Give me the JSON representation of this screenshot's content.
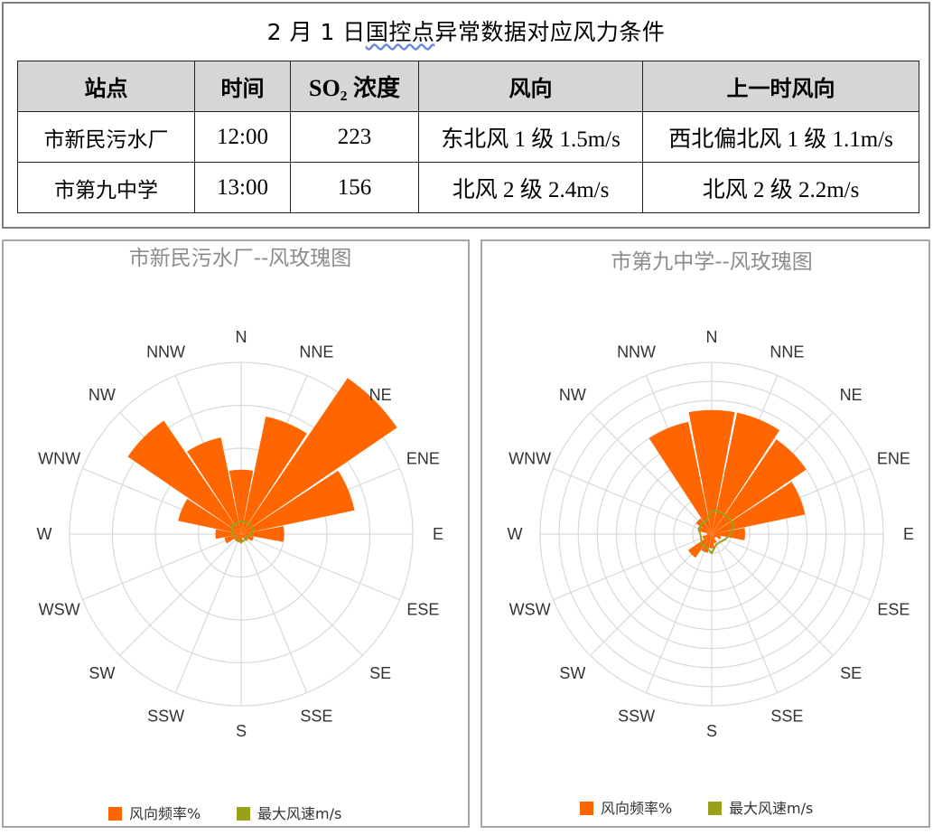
{
  "table_title": {
    "prefix": "2 月 1 日",
    "underlined": "国控点",
    "suffix": "异常数据对应风力条件"
  },
  "table": {
    "headers": [
      "站点",
      "时间",
      "SO₂ 浓度",
      "风向",
      "上一时风向"
    ],
    "rows": [
      [
        "市新民污水厂",
        "12:00",
        "223",
        "东北风 1 级 1.5m/s",
        "西北偏北风 1 级 1.1m/s"
      ],
      [
        "市第九中学",
        "13:00",
        "156",
        "北风 2 级 2.4m/s",
        "北风 2 级 2.2m/s"
      ]
    ]
  },
  "colors": {
    "frequency": "#ff6600",
    "max_speed": "#99a11a",
    "grid": "#d9d9d9",
    "title": "#8c8c8c"
  },
  "chart_data": [
    {
      "type": "radar-rose",
      "title": "市新民污水厂--风玫瑰图",
      "directions": [
        "N",
        "NNE",
        "NE",
        "ENE",
        "E",
        "ESE",
        "SE",
        "SSE",
        "S",
        "SSW",
        "SW",
        "WSW",
        "W",
        "WNW",
        "NW",
        "NNW"
      ],
      "grid_rings": 4,
      "rmax": 20,
      "series": [
        {
          "name": "风向频率%",
          "values": [
            7.5,
            14,
            22,
            13.5,
            5,
            1.5,
            1,
            0.5,
            1,
            1,
            1,
            2,
            3,
            7.5,
            16,
            11.5
          ]
        },
        {
          "name": "最大风速m/s",
          "values": [
            1.5,
            1.5,
            1.5,
            1.5,
            1.2,
            0.8,
            0.8,
            0.8,
            1,
            0.8,
            0.8,
            0.8,
            1,
            1.2,
            1.5,
            1.3
          ]
        }
      ],
      "legend": [
        "风向频率%",
        "最大风速m/s"
      ]
    },
    {
      "type": "radar-rose",
      "title": "市第九中学--风玫瑰图",
      "directions": [
        "N",
        "NNE",
        "NE",
        "ENE",
        "E",
        "ESE",
        "SE",
        "SSE",
        "S",
        "SSW",
        "SW",
        "WSW",
        "W",
        "WNW",
        "NW",
        "NNW"
      ],
      "grid_rings": 9,
      "rmax": 18,
      "series": [
        {
          "name": "风向频率%",
          "values": [
            13,
            13,
            12,
            10,
            3.5,
            1,
            0.5,
            1,
            1.5,
            2,
            3,
            1,
            0.5,
            1.5,
            2,
            12
          ]
        },
        {
          "name": "最大风速m/s",
          "values": [
            2.5,
            2.5,
            2.5,
            2.5,
            2,
            1.5,
            1.2,
            1.2,
            2,
            1.5,
            1.5,
            1.2,
            1.2,
            1.5,
            1.5,
            1.5
          ]
        }
      ],
      "legend": [
        "风向频率%",
        "最大风速m/s"
      ]
    }
  ]
}
